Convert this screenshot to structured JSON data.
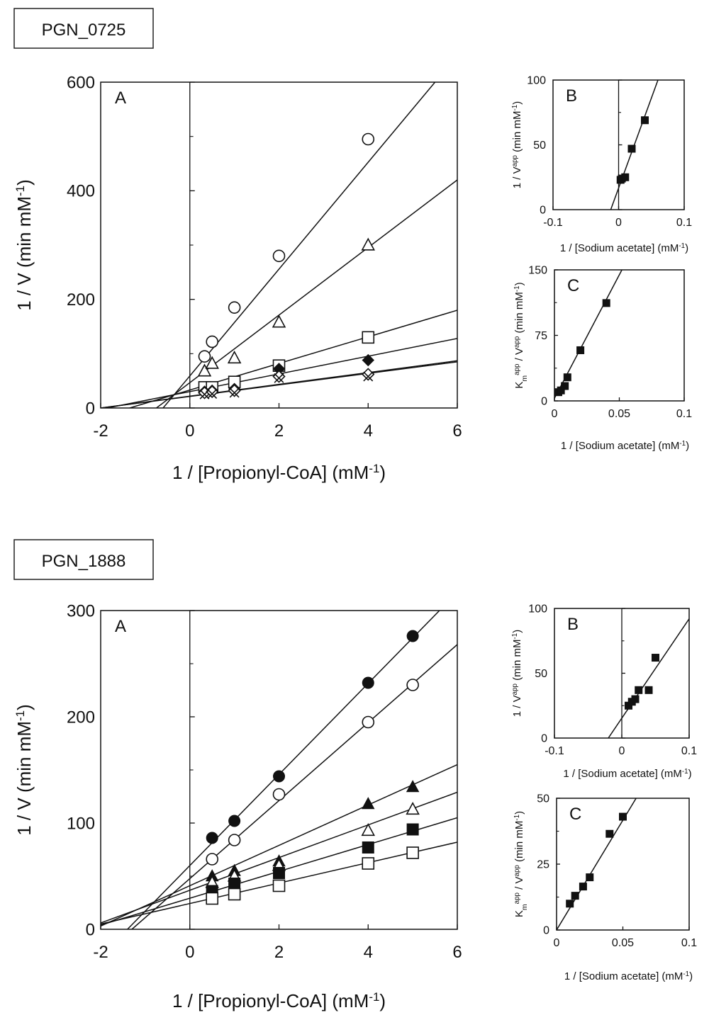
{
  "figure": {
    "panels": [
      {
        "label": "PGN_0725",
        "charts": {
          "A": {
            "type": "scatter",
            "letter": "A",
            "xlabel": "1 / [Propionyl-CoA] (mM⁻¹)",
            "ylabel": "1 / V (min mM⁻¹)",
            "xlim": [
              -2,
              6
            ],
            "ylim": [
              0,
              600
            ],
            "xticks": [
              "-2",
              "0",
              "2",
              "4",
              "6"
            ],
            "yticks": [
              "0",
              "200",
              "400",
              "600"
            ],
            "series": [
              {
                "marker": "circle-open",
                "x": [
                  0.33,
                  0.5,
                  1,
                  2,
                  4
                ],
                "y": [
                  95,
                  122,
                  185,
                  280,
                  495
                ],
                "fit": [
                  [
                    -0.6,
                    0
                  ],
                  [
                    5.5,
                    600
                  ]
                ]
              },
              {
                "marker": "triangle-open",
                "x": [
                  0.33,
                  0.5,
                  1,
                  2,
                  4
                ],
                "y": [
                  68,
                  82,
                  92,
                  158,
                  300
                ],
                "fit": [
                  [
                    -0.75,
                    0
                  ],
                  [
                    6,
                    420
                  ]
                ]
              },
              {
                "marker": "square-open",
                "x": [
                  0.33,
                  0.5,
                  1,
                  2,
                  4
                ],
                "y": [
                  38,
                  38,
                  48,
                  78,
                  130
                ],
                "fit": [
                  [
                    -1.35,
                    0
                  ],
                  [
                    6,
                    180
                  ]
                ]
              },
              {
                "marker": "diamond-filled",
                "x": [
                  0.33,
                  0.5,
                  1,
                  2,
                  4
                ],
                "y": [
                  30,
                  32,
                  35,
                  72,
                  88
                ],
                "fit": [
                  [
                    -1.85,
                    0
                  ],
                  [
                    6,
                    128
                  ]
                ]
              },
              {
                "marker": "diamond-open",
                "x": [
                  0.33,
                  0.5,
                  1,
                  2,
                  4
                ],
                "y": [
                  28,
                  30,
                  32,
                  58,
                  62
                ],
                "fit": [
                  [
                    -2,
                    0
                  ],
                  [
                    6,
                    87
                  ]
                ]
              },
              {
                "marker": "cross",
                "x": [
                  0.33,
                  0.5,
                  1,
                  2,
                  4
                ],
                "y": [
                  25,
                  26,
                  28,
                  55,
                  58
                ],
                "fit": [
                  [
                    -2,
                    0
                  ],
                  [
                    6,
                    85
                  ]
                ]
              }
            ]
          },
          "B": {
            "type": "scatter",
            "letter": "B",
            "xlabel": "1 / [Sodium  acetate]  (mM⁻¹)",
            "ylabel": "1 / Vᵃᵖᵖ (min mM⁻¹)",
            "xlim": [
              -0.1,
              0.1
            ],
            "ylim": [
              0,
              100
            ],
            "xticks": [
              "-0.1",
              "0",
              "0.1"
            ],
            "yticks": [
              "0",
              "50",
              "100"
            ],
            "series": [
              {
                "marker": "square-filled",
                "x": [
                  0.003,
                  0.005,
                  0.01,
                  0.02,
                  0.04
                ],
                "y": [
                  23,
                  24,
                  25,
                  47,
                  69
                ],
                "fit": [
                  [
                    -0.012,
                    0
                  ],
                  [
                    0.06,
                    100
                  ]
                ]
              }
            ]
          },
          "C": {
            "type": "scatter",
            "letter": "C",
            "xlabel": "1 / [Sodium  acetate]  (mM⁻¹)",
            "ylabel": "Kₘᵃᵖᵖ / Vᵃᵖᵖ (min mM⁻¹)",
            "xlim": [
              0,
              0.1
            ],
            "ylim": [
              0,
              150
            ],
            "xticks": [
              "0",
              "0.05",
              "0.1"
            ],
            "yticks": [
              "0",
              "75",
              "150"
            ],
            "series": [
              {
                "marker": "square-filled",
                "x": [
                  0.003,
                  0.005,
                  0.008,
                  0.01,
                  0.02,
                  0.04
                ],
                "y": [
                  10,
                  12,
                  17,
                  27,
                  58,
                  112
                ],
                "fit": [
                  [
                    0,
                    3
                  ],
                  [
                    0.052,
                    150
                  ]
                ]
              }
            ]
          }
        }
      },
      {
        "label": "PGN_1888",
        "charts": {
          "A": {
            "type": "scatter",
            "letter": "A",
            "xlabel": "1 / [Propionyl-CoA] (mM⁻¹)",
            "ylabel": "1 / V (min mM⁻¹)",
            "xlim": [
              -2,
              6
            ],
            "ylim": [
              0,
              300
            ],
            "xticks": [
              "-2",
              "0",
              "2",
              "4",
              "6"
            ],
            "yticks": [
              "0",
              "100",
              "200",
              "300"
            ],
            "series": [
              {
                "marker": "circle-filled",
                "x": [
                  0.5,
                  1,
                  2,
                  4,
                  5
                ],
                "y": [
                  86,
                  102,
                  144,
                  232,
                  276
                ],
                "fit": [
                  [
                    -1.4,
                    0
                  ],
                  [
                    5.6,
                    300
                  ]
                ]
              },
              {
                "marker": "circle-open",
                "x": [
                  0.5,
                  1,
                  2,
                  4,
                  5
                ],
                "y": [
                  66,
                  84,
                  127,
                  195,
                  230
                ],
                "fit": [
                  [
                    -1.3,
                    0
                  ],
                  [
                    6,
                    268
                  ]
                ]
              },
              {
                "marker": "triangle-filled",
                "x": [
                  0.5,
                  1,
                  2,
                  4,
                  5
                ],
                "y": [
                  50,
                  55,
                  64,
                  118,
                  134
                ],
                "fit": [
                  [
                    -2,
                    3
                  ],
                  [
                    6,
                    155
                  ]
                ]
              },
              {
                "marker": "triangle-open",
                "x": [
                  0.5,
                  1,
                  2,
                  4,
                  5
                ],
                "y": [
                  44,
                  50,
                  60,
                  93,
                  113
                ],
                "fit": [
                  [
                    -2,
                    6
                  ],
                  [
                    6,
                    129
                  ]
                ]
              },
              {
                "marker": "square-filled",
                "x": [
                  0.5,
                  1,
                  2,
                  4,
                  5
                ],
                "y": [
                  36,
                  43,
                  53,
                  77,
                  94
                ],
                "fit": [
                  [
                    -2,
                    4
                  ],
                  [
                    6,
                    105
                  ]
                ]
              },
              {
                "marker": "square-open",
                "x": [
                  0.5,
                  1,
                  2,
                  4,
                  5
                ],
                "y": [
                  29,
                  33,
                  41,
                  62,
                  72
                ],
                "fit": [
                  [
                    -2,
                    5
                  ],
                  [
                    6,
                    82
                  ]
                ]
              }
            ]
          },
          "B": {
            "type": "scatter",
            "letter": "B",
            "xlabel": "1 / [Sodium  acetate]  (mM⁻¹)",
            "ylabel": "1 / Vᵃᵖᵖ (min mM⁻¹)",
            "xlim": [
              -0.1,
              0.1
            ],
            "ylim": [
              0,
              100
            ],
            "xticks": [
              "-0.1",
              "0",
              "0.1"
            ],
            "yticks": [
              "0",
              "50",
              "100"
            ],
            "series": [
              {
                "marker": "square-filled",
                "x": [
                  0.01,
                  0.015,
                  0.02,
                  0.025,
                  0.04,
                  0.05
                ],
                "y": [
                  25,
                  28,
                  30,
                  37,
                  37,
                  62
                ],
                "fit": [
                  [
                    -0.02,
                    0
                  ],
                  [
                    0.1,
                    92
                  ]
                ]
              }
            ]
          },
          "C": {
            "type": "scatter",
            "letter": "C",
            "xlabel": "1 / [Sodium  acetate]  (mM⁻¹)",
            "ylabel": "Kₘᵃᵖᵖ / Vᵃᵖᵖ (min mM⁻¹)",
            "xlim": [
              0,
              0.1
            ],
            "ylim": [
              0,
              50
            ],
            "xticks": [
              "0",
              "0.05",
              "0.1"
            ],
            "yticks": [
              "0",
              "25",
              "50"
            ],
            "series": [
              {
                "marker": "square-filled",
                "x": [
                  0.01,
                  0.014,
                  0.02,
                  0.025,
                  0.04,
                  0.05
                ],
                "y": [
                  10,
                  13,
                  16.5,
                  20,
                  36.5,
                  43
                ],
                "fit": [
                  [
                    0,
                    0
                  ],
                  [
                    0.06,
                    50
                  ]
                ]
              }
            ]
          }
        }
      }
    ]
  }
}
